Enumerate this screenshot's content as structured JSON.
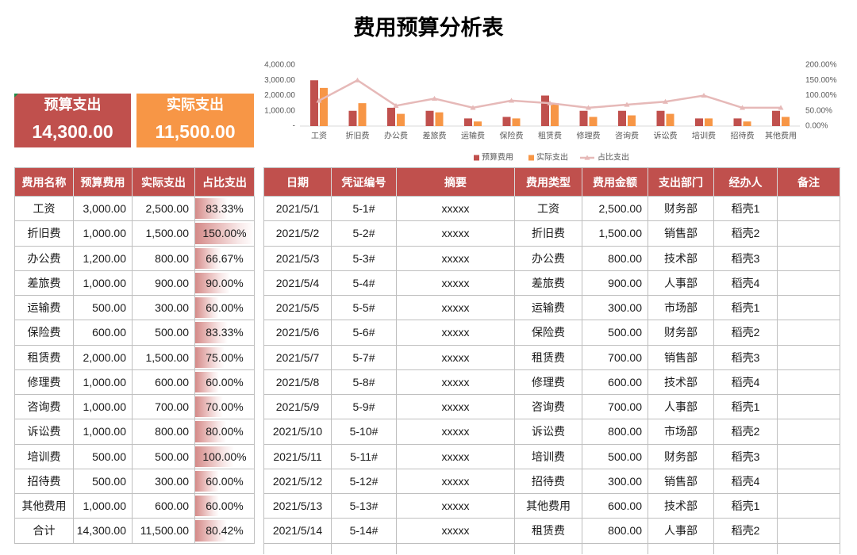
{
  "title": "费用预算分析表",
  "colors": {
    "header": "#C0504D"
  },
  "summary": {
    "budget": {
      "label": "预算支出",
      "value": "14,300.00",
      "color": "#C0504D"
    },
    "actual": {
      "label": "实际支出",
      "value": "11,500.00",
      "color": "#F79646"
    }
  },
  "left_table": {
    "headers": [
      "费用名称",
      "预算费用",
      "实际支出",
      "占比支出"
    ],
    "rows": [
      {
        "name": "工资",
        "budget": "3,000.00",
        "actual": "2,500.00",
        "ratio": "83.33%"
      },
      {
        "name": "折旧费",
        "budget": "1,000.00",
        "actual": "1,500.00",
        "ratio": "150.00%"
      },
      {
        "name": "办公费",
        "budget": "1,200.00",
        "actual": "800.00",
        "ratio": "66.67%"
      },
      {
        "name": "差旅费",
        "budget": "1,000.00",
        "actual": "900.00",
        "ratio": "90.00%"
      },
      {
        "name": "运输费",
        "budget": "500.00",
        "actual": "300.00",
        "ratio": "60.00%"
      },
      {
        "name": "保险费",
        "budget": "600.00",
        "actual": "500.00",
        "ratio": "83.33%"
      },
      {
        "name": "租赁费",
        "budget": "2,000.00",
        "actual": "1,500.00",
        "ratio": "75.00%"
      },
      {
        "name": "修理费",
        "budget": "1,000.00",
        "actual": "600.00",
        "ratio": "60.00%"
      },
      {
        "name": "咨询费",
        "budget": "1,000.00",
        "actual": "700.00",
        "ratio": "70.00%"
      },
      {
        "name": "诉讼费",
        "budget": "1,000.00",
        "actual": "800.00",
        "ratio": "80.00%"
      },
      {
        "name": "培训费",
        "budget": "500.00",
        "actual": "500.00",
        "ratio": "100.00%"
      },
      {
        "name": "招待费",
        "budget": "500.00",
        "actual": "300.00",
        "ratio": "60.00%"
      },
      {
        "name": "其他费用",
        "budget": "1,000.00",
        "actual": "600.00",
        "ratio": "60.00%"
      },
      {
        "name": "合计",
        "budget": "14,300.00",
        "actual": "11,500.00",
        "ratio": "80.42%"
      }
    ]
  },
  "right_table": {
    "headers": [
      "日期",
      "凭证编号",
      "摘要",
      "费用类型",
      "费用金额",
      "支出部门",
      "经办人",
      "备注"
    ],
    "rows": [
      {
        "date": "2021/5/1",
        "voucher": "5-1#",
        "summary": "xxxxx",
        "type": "工资",
        "amount": "2,500.00",
        "dept": "财务部",
        "handler": "稻壳1"
      },
      {
        "date": "2021/5/2",
        "voucher": "5-2#",
        "summary": "xxxxx",
        "type": "折旧费",
        "amount": "1,500.00",
        "dept": "销售部",
        "handler": "稻壳2"
      },
      {
        "date": "2021/5/3",
        "voucher": "5-3#",
        "summary": "xxxxx",
        "type": "办公费",
        "amount": "800.00",
        "dept": "技术部",
        "handler": "稻壳3"
      },
      {
        "date": "2021/5/4",
        "voucher": "5-4#",
        "summary": "xxxxx",
        "type": "差旅费",
        "amount": "900.00",
        "dept": "人事部",
        "handler": "稻壳4"
      },
      {
        "date": "2021/5/5",
        "voucher": "5-5#",
        "summary": "xxxxx",
        "type": "运输费",
        "amount": "300.00",
        "dept": "市场部",
        "handler": "稻壳1"
      },
      {
        "date": "2021/5/6",
        "voucher": "5-6#",
        "summary": "xxxxx",
        "type": "保险费",
        "amount": "500.00",
        "dept": "财务部",
        "handler": "稻壳2"
      },
      {
        "date": "2021/5/7",
        "voucher": "5-7#",
        "summary": "xxxxx",
        "type": "租赁费",
        "amount": "700.00",
        "dept": "销售部",
        "handler": "稻壳3"
      },
      {
        "date": "2021/5/8",
        "voucher": "5-8#",
        "summary": "xxxxx",
        "type": "修理费",
        "amount": "600.00",
        "dept": "技术部",
        "handler": "稻壳4"
      },
      {
        "date": "2021/5/9",
        "voucher": "5-9#",
        "summary": "xxxxx",
        "type": "咨询费",
        "amount": "700.00",
        "dept": "人事部",
        "handler": "稻壳1"
      },
      {
        "date": "2021/5/10",
        "voucher": "5-10#",
        "summary": "xxxxx",
        "type": "诉讼费",
        "amount": "800.00",
        "dept": "市场部",
        "handler": "稻壳2"
      },
      {
        "date": "2021/5/11",
        "voucher": "5-11#",
        "summary": "xxxxx",
        "type": "培训费",
        "amount": "500.00",
        "dept": "财务部",
        "handler": "稻壳3"
      },
      {
        "date": "2021/5/12",
        "voucher": "5-12#",
        "summary": "xxxxx",
        "type": "招待费",
        "amount": "300.00",
        "dept": "销售部",
        "handler": "稻壳4"
      },
      {
        "date": "2021/5/13",
        "voucher": "5-13#",
        "summary": "xxxxx",
        "type": "其他费用",
        "amount": "600.00",
        "dept": "技术部",
        "handler": "稻壳1"
      },
      {
        "date": "2021/5/14",
        "voucher": "5-14#",
        "summary": "xxxxx",
        "type": "租赁费",
        "amount": "800.00",
        "dept": "人事部",
        "handler": "稻壳2"
      }
    ]
  },
  "chart_data": {
    "type": "bar",
    "categories": [
      "工资",
      "折旧费",
      "办公费",
      "差旅费",
      "运输费",
      "保险费",
      "租赁费",
      "修理费",
      "咨询费",
      "诉讼费",
      "培训费",
      "招待费",
      "其他费用"
    ],
    "series": [
      {
        "name": "预算费用",
        "type": "bar",
        "axis": "left",
        "color": "#C0504D",
        "values": [
          3000,
          1000,
          1200,
          1000,
          500,
          600,
          2000,
          1000,
          1000,
          1000,
          500,
          500,
          1000
        ]
      },
      {
        "name": "实际支出",
        "type": "bar",
        "axis": "left",
        "color": "#F79646",
        "values": [
          2500,
          1500,
          800,
          900,
          300,
          500,
          1500,
          600,
          700,
          800,
          500,
          300,
          600
        ]
      },
      {
        "name": "占比支出",
        "type": "line",
        "axis": "right",
        "color": "#E6B9B8",
        "values": [
          83.33,
          150,
          66.67,
          90,
          60,
          83.33,
          75,
          60,
          70,
          80,
          100,
          60,
          60
        ]
      }
    ],
    "y_left": {
      "min": 0,
      "max": 4000,
      "ticks": [
        {
          "value": 4000,
          "label": "4,000.00"
        },
        {
          "value": 3000,
          "label": "3,000.00"
        },
        {
          "value": 2000,
          "label": "2,000.00"
        },
        {
          "value": 1000,
          "label": "1,000.00"
        },
        {
          "value": 0,
          "label": "-"
        }
      ]
    },
    "y_right": {
      "min": 0,
      "max": 200,
      "ticks": [
        {
          "value": 200,
          "label": "200.00%"
        },
        {
          "value": 150,
          "label": "150.00%"
        },
        {
          "value": 100,
          "label": "100.00%"
        },
        {
          "value": 50,
          "label": "50.00%"
        },
        {
          "value": 0,
          "label": "0.00%"
        }
      ]
    },
    "legend": "bottom",
    "grid": false
  }
}
